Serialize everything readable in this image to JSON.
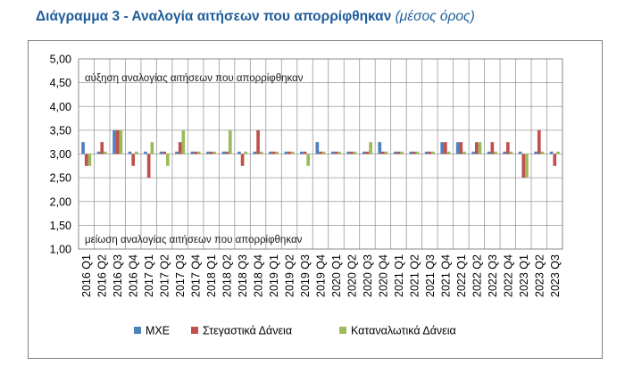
{
  "chart_data": {
    "type": "bar",
    "title": "Διάγραμμα 3 - Αναλογία αιτήσεων που απορρίφθηκαν",
    "subtitle": "(μέσος όρος)",
    "ylim": [
      1.0,
      5.0
    ],
    "yticks": [
      "1,00",
      "1,50",
      "2,00",
      "2,50",
      "3,00",
      "3,50",
      "4,00",
      "4,50",
      "5,00"
    ],
    "ytick_values": [
      1.0,
      1.5,
      2.0,
      2.5,
      3.0,
      3.5,
      4.0,
      4.5,
      5.0
    ],
    "baseline": 3.0,
    "grid": true,
    "legend_position": "bottom",
    "annotations": {
      "top": "αύξηση αναλογίας αιτήσεων που απορρίφθηκαν",
      "bottom": "μείωση αναλογίας αιτήσεων που απορρίφθηκαν"
    },
    "categories": [
      "2016 Q1",
      "2016 Q2",
      "2016 Q3",
      "2016 Q4",
      "2017 Q1",
      "2017 Q2",
      "2017 Q3",
      "2017 Q4",
      "2018 Q1",
      "2018 Q2",
      "2018 Q3",
      "2018 Q4",
      "2019 Q1",
      "2019 Q2",
      "2019 Q3",
      "2019 Q4",
      "2020 Q1",
      "2020 Q2",
      "2020 Q3",
      "2020 Q4",
      "2021 Q1",
      "2021 Q2",
      "2021 Q3",
      "2021 Q4",
      "2022 Q1",
      "2022 Q2",
      "2022 Q3",
      "2022 Q4",
      "2023 Q1",
      "2023 Q2",
      "2023 Q3"
    ],
    "series": [
      {
        "name": "ΜΧΕ",
        "color": "#4f81bd",
        "values": [
          3.25,
          3.05,
          3.5,
          3.05,
          3.05,
          3.05,
          3.05,
          3.05,
          3.05,
          3.05,
          3.05,
          3.05,
          3.05,
          3.05,
          3.05,
          3.25,
          3.05,
          3.05,
          3.05,
          3.25,
          3.05,
          3.05,
          3.05,
          3.25,
          3.25,
          3.05,
          3.05,
          3.05,
          3.05,
          3.05,
          3.05
        ]
      },
      {
        "name": "Στεγαστικά Δάνεια",
        "color": "#c0504d",
        "values": [
          2.75,
          3.25,
          3.5,
          2.75,
          2.5,
          3.05,
          3.25,
          3.05,
          3.05,
          3.05,
          2.75,
          3.5,
          3.05,
          3.05,
          3.05,
          3.05,
          3.05,
          3.05,
          3.05,
          3.05,
          3.05,
          3.05,
          3.05,
          3.25,
          3.25,
          3.25,
          3.25,
          3.25,
          2.5,
          3.5,
          2.75
        ]
      },
      {
        "name": "Καταναλωτικά Δάνεια",
        "color": "#9bbb59",
        "values": [
          2.75,
          3.05,
          3.5,
          3.05,
          3.25,
          2.75,
          3.5,
          3.05,
          3.05,
          3.5,
          3.05,
          3.05,
          3.05,
          3.05,
          2.75,
          3.05,
          3.05,
          3.05,
          3.25,
          3.05,
          3.05,
          3.05,
          3.05,
          3.05,
          3.05,
          3.25,
          3.05,
          3.05,
          2.5,
          3.05,
          3.05
        ]
      }
    ]
  }
}
